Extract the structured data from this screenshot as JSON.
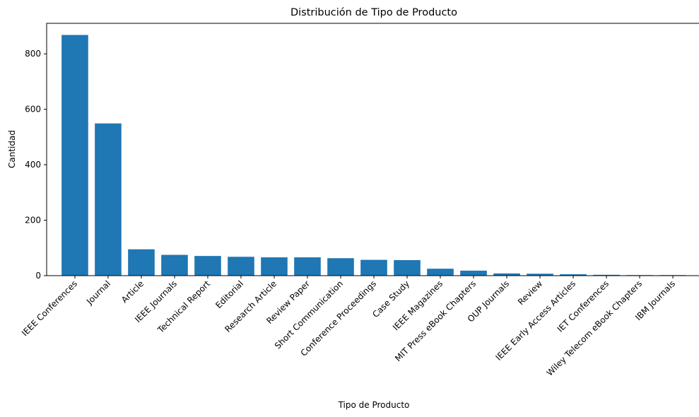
{
  "chart_data": {
    "type": "bar",
    "title": "Distribución de Tipo de Producto",
    "xlabel": "Tipo de Producto",
    "ylabel": "Cantidad",
    "ylim": [
      0,
      910
    ],
    "yticks": [
      0,
      200,
      400,
      600,
      800
    ],
    "grid": false,
    "bar_color": "#1f77b4",
    "categories": [
      "IEEE Conferences",
      "Journal",
      "Article",
      "IEEE Journals",
      "Technical Report",
      "Editorial",
      "Research Article",
      "Review Paper",
      "Short Communication",
      "Conference Proceedings",
      "Case Study",
      "IEEE Magazines",
      "MIT Press eBook Chapters",
      "OUP Journals",
      "Review",
      "IEEE Early Access Articles",
      "IET Conferences",
      "Wiley Telecom eBook Chapters",
      "IBM Journals"
    ],
    "values": [
      868,
      549,
      95,
      75,
      71,
      68,
      66,
      66,
      63,
      57,
      56,
      25,
      18,
      8,
      7,
      5,
      3,
      2,
      2
    ]
  }
}
